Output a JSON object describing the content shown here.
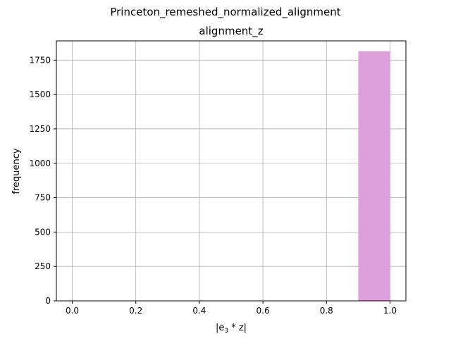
{
  "suptitle": "Princeton_remeshed_normalized_alignment",
  "chart_data": {
    "type": "bar",
    "title": "alignment_z",
    "xlabel": {
      "prefix": "|e",
      "subscript": "3",
      "suffix": " * z|"
    },
    "ylabel": "frequency",
    "xlim": [
      -0.05,
      1.05
    ],
    "ylim": [
      0,
      1890
    ],
    "x_ticks": [
      0.0,
      0.2,
      0.4,
      0.6,
      0.8,
      1.0
    ],
    "x_tick_labels": [
      "0.0",
      "0.2",
      "0.4",
      "0.6",
      "0.8",
      "1.0"
    ],
    "y_ticks": [
      0,
      250,
      500,
      750,
      1000,
      1250,
      1500,
      1750
    ],
    "y_tick_labels": [
      "0",
      "250",
      "500",
      "750",
      "1000",
      "1250",
      "1500",
      "1750"
    ],
    "grid": true,
    "bars": [
      {
        "x_start": 0.9,
        "x_end": 1.0,
        "value": 1815
      }
    ],
    "colors": {
      "bar": "#dda0dd",
      "grid": "#b0b0b0",
      "axes": "#000000"
    }
  }
}
